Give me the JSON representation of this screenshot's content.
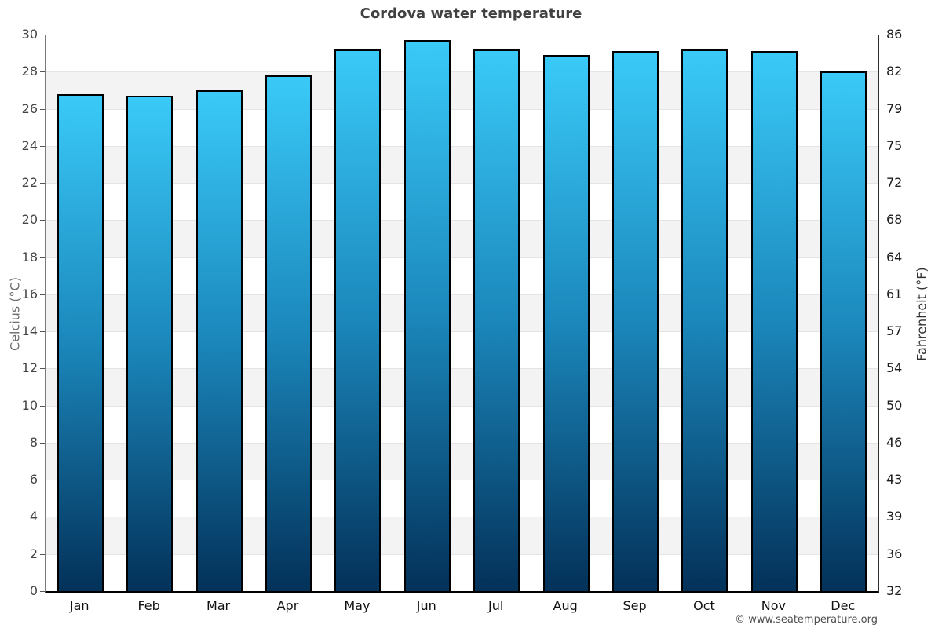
{
  "chart_data": {
    "type": "bar",
    "title": "Cordova water temperature",
    "categories": [
      "Jan",
      "Feb",
      "Mar",
      "Apr",
      "May",
      "Jun",
      "Jul",
      "Aug",
      "Sep",
      "Oct",
      "Nov",
      "Dec"
    ],
    "values": [
      26.8,
      26.7,
      27.0,
      27.8,
      29.2,
      29.7,
      29.2,
      28.9,
      29.1,
      29.2,
      29.1,
      28.0
    ],
    "ylabel_left": "Celcius (°C)",
    "ylabel_right": "Fahrenheit (°F)",
    "ylim": [
      0,
      30
    ],
    "celsius_ticks": [
      0,
      2,
      4,
      6,
      8,
      10,
      12,
      14,
      16,
      18,
      20,
      22,
      24,
      26,
      28,
      30
    ],
    "fahrenheit_tick_labels": [
      "32",
      "36",
      "39",
      "43",
      "46",
      "50",
      "54",
      "57",
      "61",
      "64",
      "68",
      "72",
      "75",
      "79",
      "82",
      "86"
    ],
    "legend_position": "none",
    "grid": "horizontal gridlines with alternating background bands",
    "colors": {
      "bar_top": "#3ACAF8",
      "bar_mid": "#1B87BB",
      "bar_bottom": "#033159",
      "bar_border": "#000000",
      "band_light": "#ffffff",
      "band_dark": "#f3f3f3",
      "gridline": "#e4e4e4",
      "bottom_axis": "#000000"
    }
  },
  "footer": {
    "text": "© www.seatemperature.org"
  }
}
